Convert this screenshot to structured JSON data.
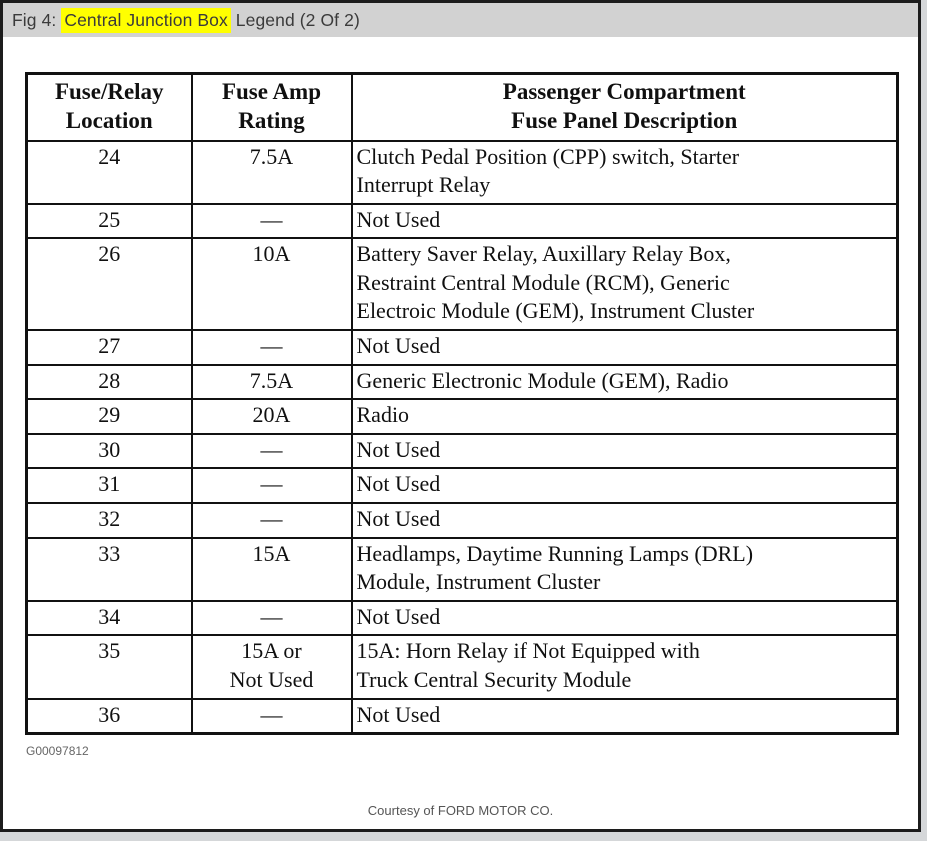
{
  "titlebar": {
    "prefix": "Fig 4: ",
    "highlight": "Central Junction Box",
    "suffix": " Legend (2 Of 2)",
    "highlight_color": "#ffff00",
    "bar_color": "#d2d2d2"
  },
  "table": {
    "columns": [
      {
        "label": "Fuse/Relay\nLocation"
      },
      {
        "label": "Fuse Amp\nRating"
      },
      {
        "label": "Passenger Compartment\nFuse Panel Description"
      }
    ],
    "rows": [
      {
        "location": "24",
        "rating": "7.5A",
        "description": "Clutch Pedal Position (CPP) switch, Starter\nInterrupt Relay"
      },
      {
        "location": "25",
        "rating": "—",
        "description": "Not Used"
      },
      {
        "location": "26",
        "rating": "10A",
        "description": "Battery Saver Relay, Auxillary Relay Box,\nRestraint Central Module (RCM), Generic\nElectroic Module (GEM), Instrument Cluster"
      },
      {
        "location": "27",
        "rating": "—",
        "description": "Not Used"
      },
      {
        "location": "28",
        "rating": "7.5A",
        "description": "Generic Electronic Module (GEM), Radio"
      },
      {
        "location": "29",
        "rating": "20A",
        "description": "Radio"
      },
      {
        "location": "30",
        "rating": "—",
        "description": "Not Used"
      },
      {
        "location": "31",
        "rating": "—",
        "description": "Not Used"
      },
      {
        "location": "32",
        "rating": "—",
        "description": "Not Used"
      },
      {
        "location": "33",
        "rating": "15A",
        "description": "Headlamps, Daytime Running Lamps (DRL)\nModule, Instrument Cluster"
      },
      {
        "location": "34",
        "rating": "—",
        "description": "Not Used"
      },
      {
        "location": "35",
        "rating": "15A or\nNot Used",
        "description": "15A: Horn Relay if Not Equipped with\nTruck Central Security Module"
      },
      {
        "location": "36",
        "rating": "—",
        "description": "Not Used"
      }
    ]
  },
  "footer": {
    "figure_code": "G00097812",
    "credit": "Courtesy of FORD MOTOR CO."
  },
  "colors": {
    "outside_bg": "#d5d7d9",
    "page_bg": "#ffffff",
    "frame_border": "#1c1c1c",
    "table_border": "#111111",
    "titlebar_bg": "#d2d2d2",
    "highlight": "#ffff00"
  }
}
